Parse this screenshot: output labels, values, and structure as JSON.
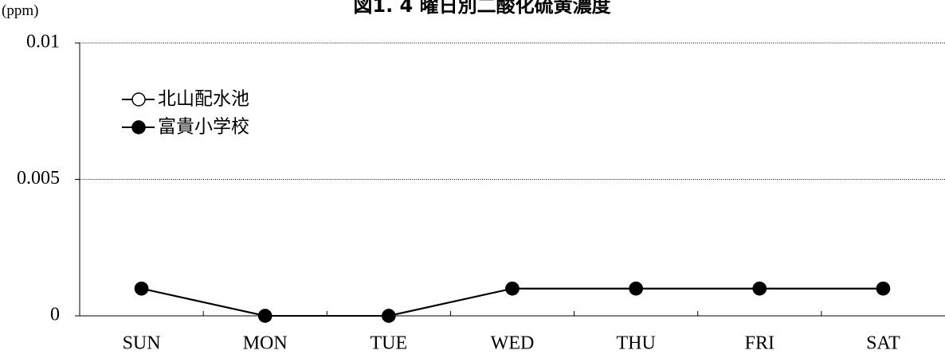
{
  "chart_data": {
    "type": "line",
    "title": "図1. 4 曜日別二酸化硫黄濃度",
    "ylabel": "(ppm)",
    "xlabel": "",
    "categories": [
      "SUN",
      "MON",
      "TUE",
      "WED",
      "THU",
      "FRI",
      "SAT"
    ],
    "ylim": [
      0,
      0.01
    ],
    "yticks": [
      0,
      0.005,
      0.01
    ],
    "ytick_labels": [
      "0",
      "0.005",
      "0.01"
    ],
    "grid": true,
    "legend_placement": "top-left",
    "series": [
      {
        "name": "北山配水池",
        "marker": "open-circle",
        "color": "#000000",
        "values": [
          0.001,
          0,
          0,
          0.001,
          0.001,
          0.001,
          0.001
        ]
      },
      {
        "name": "富貴小学校",
        "marker": "filled-circle",
        "color": "#000000",
        "values": [
          0.001,
          0,
          0,
          0.001,
          0.001,
          0.001,
          0.001
        ]
      }
    ]
  }
}
